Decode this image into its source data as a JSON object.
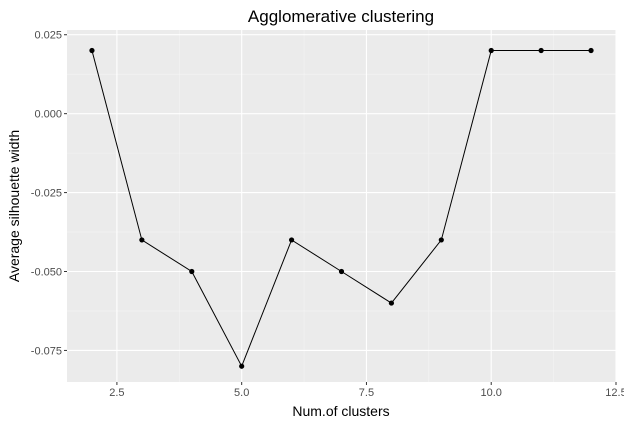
{
  "chart_data": {
    "type": "line",
    "title": "Agglomerative clustering",
    "xlabel": "Num.of clusters",
    "ylabel": "Average silhouette width",
    "xlim": [
      1.5,
      12.5
    ],
    "ylim": [
      -0.085,
      0.0265
    ],
    "x_ticks": [
      2.5,
      5.0,
      7.5,
      10.0,
      12.5
    ],
    "x_tick_labels": [
      "2.5",
      "5.0",
      "7.5",
      "10.0",
      "12.5"
    ],
    "y_ticks": [
      -0.075,
      -0.05,
      -0.025,
      0.0,
      0.025
    ],
    "y_tick_labels": [
      "-0.075",
      "-0.050",
      "-0.025",
      "0.000",
      "0.025"
    ],
    "grid": true,
    "series": [
      {
        "x": [
          2,
          3,
          4,
          5,
          6,
          7,
          8,
          9,
          10,
          11,
          12
        ],
        "values": [
          0.02,
          -0.04,
          -0.05,
          -0.08,
          -0.04,
          -0.05,
          -0.06,
          -0.04,
          0.02,
          0.02,
          0.02
        ]
      }
    ],
    "colors": {
      "panel": "#ebebeb",
      "grid_major": "#ffffff",
      "grid_minor": "#f5f5f5",
      "line": "#000000",
      "point": "#000000"
    }
  }
}
